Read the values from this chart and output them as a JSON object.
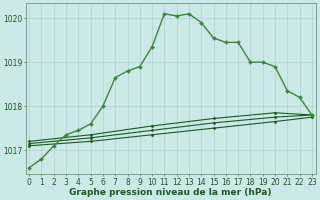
{
  "main_line": {
    "x": [
      0,
      1,
      2,
      3,
      4,
      5,
      6,
      7,
      8,
      9,
      10,
      11,
      12,
      13,
      14,
      15,
      16,
      17,
      18,
      19,
      20,
      21,
      22,
      23
    ],
    "y": [
      1016.6,
      1016.8,
      1017.1,
      1017.35,
      1017.45,
      1017.6,
      1018.0,
      1018.65,
      1018.8,
      1018.9,
      1019.35,
      1020.1,
      1020.05,
      1020.1,
      1019.9,
      1019.55,
      1019.45,
      1019.45,
      1019.0,
      1019.0,
      1018.9,
      1018.35,
      1018.2,
      1017.8
    ],
    "color": "#3a8a3a",
    "linewidth": 1.0,
    "marker": "D",
    "markersize": 2.0
  },
  "ref_line1": {
    "x": [
      0,
      5,
      10,
      15,
      20,
      23
    ],
    "y": [
      1017.1,
      1017.2,
      1017.35,
      1017.5,
      1017.65,
      1017.75
    ],
    "color": "#1a5c1a",
    "linewidth": 0.8,
    "marker": "D",
    "markersize": 1.5
  },
  "ref_line2": {
    "x": [
      0,
      5,
      10,
      15,
      20,
      23
    ],
    "y": [
      1017.15,
      1017.28,
      1017.45,
      1017.62,
      1017.75,
      1017.8
    ],
    "color": "#1a5c1a",
    "linewidth": 0.8,
    "marker": "D",
    "markersize": 1.5
  },
  "ref_line3": {
    "x": [
      0,
      5,
      10,
      15,
      20,
      23
    ],
    "y": [
      1017.2,
      1017.35,
      1017.55,
      1017.72,
      1017.85,
      1017.8
    ],
    "color": "#1a5c1a",
    "linewidth": 0.8,
    "marker": "D",
    "markersize": 1.5
  },
  "background_color": "#cce8e8",
  "grid_color": "#aacccc",
  "xlim": [
    -0.3,
    23.3
  ],
  "ylim": [
    1016.45,
    1020.35
  ],
  "yticks": [
    1017,
    1018,
    1019,
    1020
  ],
  "xticks": [
    0,
    1,
    2,
    3,
    4,
    5,
    6,
    7,
    8,
    9,
    10,
    11,
    12,
    13,
    14,
    15,
    16,
    17,
    18,
    19,
    20,
    21,
    22,
    23
  ],
  "xlabel": "Graphe pression niveau de la mer (hPa)",
  "xlabel_fontsize": 6.5,
  "tick_fontsize": 5.5,
  "text_color": "#1a5c1a",
  "axis_color": "#5a8a5a",
  "figure_width": 3.2,
  "figure_height": 2.0,
  "dpi": 100
}
